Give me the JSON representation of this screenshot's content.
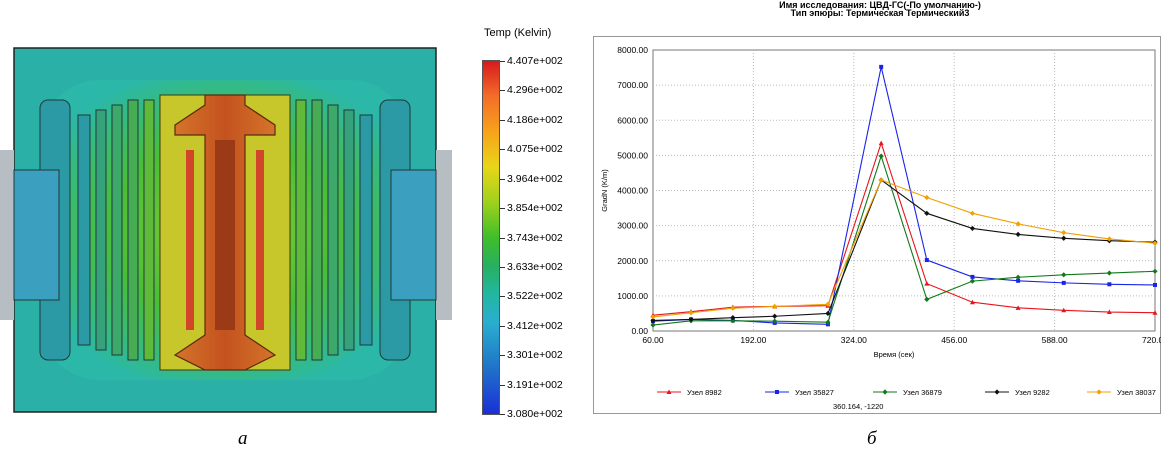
{
  "panel_a": {
    "label": "a",
    "colorbar": {
      "title": "Temp (Kelvin)",
      "labels": [
        "4.407e+002",
        "4.296e+002",
        "4.186e+002",
        "4.075e+002",
        "3.964e+002",
        "3.854e+002",
        "3.743e+002",
        "3.633e+002",
        "3.522e+002",
        "3.412e+002",
        "3.301e+002",
        "3.191e+002",
        "3.080e+002"
      ],
      "range": [
        308.0,
        440.7
      ]
    }
  },
  "panel_b": {
    "label": "б",
    "title_line1": "Имя  исследования: ЦВД-ГС(-По умолчанию-)",
    "title_line2": "Тип эпюры: Термическая Термический3",
    "cursor_readout": "360.164, -1220"
  },
  "chart_data": {
    "type": "line",
    "title": "",
    "xlabel": "Время (сек)",
    "ylabel": "GradN (K/m)",
    "xlim": [
      60,
      720
    ],
    "ylim": [
      0,
      8000
    ],
    "x_ticks": [
      "60.00",
      "192.00",
      "324.00",
      "456.00",
      "588.00",
      "720.00"
    ],
    "y_ticks": [
      "0.00",
      "1000.00",
      "2000.00",
      "3000.00",
      "4000.00",
      "5000.00",
      "6000.00",
      "7000.00",
      "8000.00"
    ],
    "grid": true,
    "legend_position": "bottom",
    "x": [
      60,
      110,
      165,
      220,
      290,
      360,
      420,
      480,
      540,
      600,
      660,
      720
    ],
    "series": [
      {
        "name": "Узел 8982",
        "color": "#e8141e",
        "values": [
          450,
          550,
          680,
          700,
          720,
          5350,
          1350,
          820,
          660,
          590,
          540,
          520
        ]
      },
      {
        "name": "Узел 35827",
        "color": "#1a24e8",
        "values": [
          280,
          330,
          300,
          230,
          190,
          7520,
          2020,
          1540,
          1430,
          1370,
          1330,
          1310
        ]
      },
      {
        "name": "Узел 36879",
        "color": "#0f7a19",
        "values": [
          170,
          290,
          290,
          280,
          250,
          4980,
          900,
          1420,
          1530,
          1600,
          1650,
          1700
        ]
      },
      {
        "name": "Узел 9282",
        "color": "#111111",
        "values": [
          300,
          330,
          380,
          420,
          500,
          4300,
          3350,
          2920,
          2750,
          2640,
          2570,
          2530
        ]
      },
      {
        "name": "Узел 38037",
        "color": "#f0a000",
        "values": [
          400,
          520,
          650,
          700,
          760,
          4300,
          3800,
          3350,
          3050,
          2800,
          2620,
          2500
        ]
      }
    ]
  }
}
